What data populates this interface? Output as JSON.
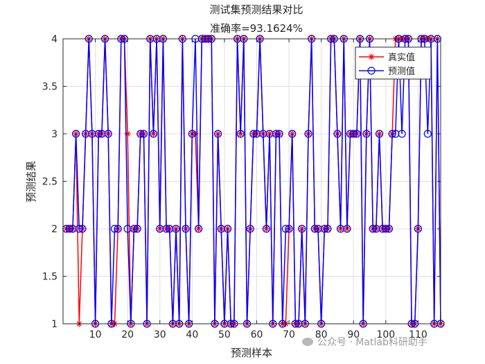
{
  "chart_data": {
    "type": "line",
    "title": "测试集预测结果对比",
    "subtitle": "准确率=93.1624%",
    "xlabel": "预测样本",
    "ylabel": "预测结果",
    "xlim": [
      0,
      117
    ],
    "ylim": [
      1,
      4
    ],
    "xticks": [
      10,
      20,
      30,
      40,
      50,
      60,
      70,
      80,
      90,
      100,
      110
    ],
    "yticks": [
      1,
      1.5,
      2,
      2.5,
      3,
      3.5,
      4
    ],
    "grid": true,
    "legend_position": "top-right",
    "series": [
      {
        "name": "真实值",
        "color": "#ff0000",
        "marker": "asterisk",
        "values": [
          2,
          2,
          2,
          3,
          1,
          2,
          3,
          4,
          3,
          1,
          3,
          3,
          4,
          3,
          1,
          1,
          2,
          4,
          4,
          3,
          1,
          2,
          2,
          3,
          3,
          1,
          4,
          3,
          4,
          2,
          4,
          2,
          2,
          1,
          2,
          1,
          4,
          2,
          1,
          3,
          3,
          2,
          4,
          4,
          4,
          4,
          1,
          3,
          2,
          1,
          2,
          1,
          1,
          4,
          3,
          4,
          1,
          2,
          3,
          3,
          4,
          3,
          2,
          3,
          1,
          3,
          3,
          1,
          1,
          2,
          3,
          1,
          1,
          2,
          1,
          3,
          4,
          2,
          2,
          1,
          2,
          2,
          4,
          4,
          3,
          2,
          4,
          2,
          3,
          3,
          3,
          4,
          1,
          3,
          4,
          2,
          2,
          3,
          2,
          2,
          2,
          3,
          4,
          4,
          4,
          4,
          4,
          1,
          1,
          2,
          4,
          4,
          4,
          4,
          1,
          4,
          1
        ]
      },
      {
        "name": "预测值",
        "color": "#0000ff",
        "marker": "circle",
        "values": [
          2,
          2,
          2,
          3,
          2,
          2,
          3,
          4,
          3,
          1,
          3,
          3,
          4,
          3,
          1,
          2,
          2,
          4,
          4,
          2,
          1,
          2,
          2,
          3,
          3,
          1,
          4,
          3,
          4,
          2,
          4,
          2,
          2,
          1,
          2,
          1,
          4,
          2,
          1,
          3,
          4,
          2,
          4,
          4,
          4,
          4,
          1,
          3,
          2,
          1,
          2,
          1,
          1,
          4,
          3,
          4,
          1,
          2,
          3,
          3,
          4,
          3,
          2,
          3,
          1,
          3,
          3,
          1,
          2,
          2,
          3,
          1,
          1,
          2,
          1,
          3,
          4,
          2,
          2,
          1,
          2,
          2,
          4,
          4,
          3,
          2,
          4,
          2,
          3,
          3,
          3,
          4,
          1,
          3,
          4,
          2,
          2,
          3,
          2,
          2,
          2,
          3,
          3,
          4,
          3,
          4,
          4,
          1,
          1,
          2,
          4,
          4,
          3,
          4,
          1,
          4,
          1
        ]
      }
    ]
  },
  "watermark": "公众号 · Matlab科研助手"
}
